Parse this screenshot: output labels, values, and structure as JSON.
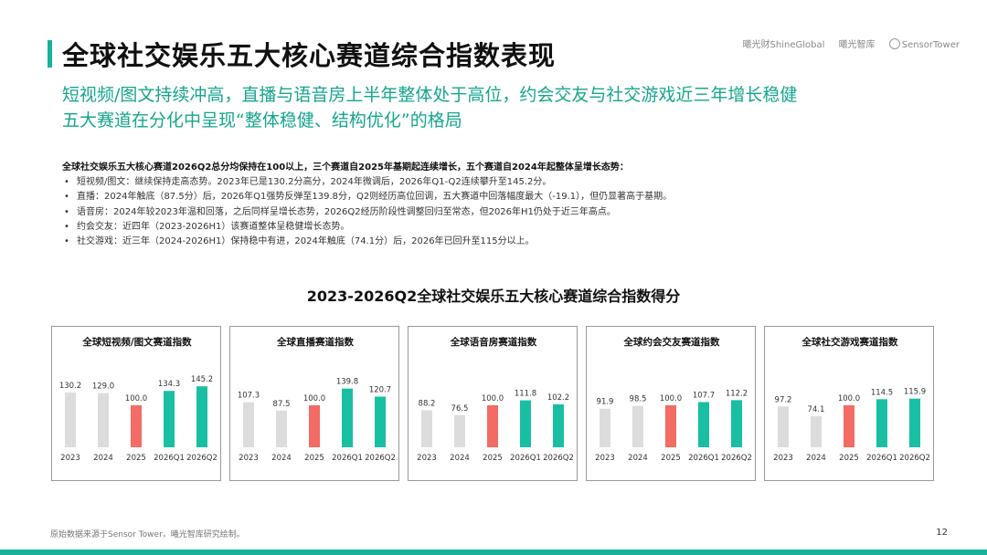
{
  "header": {
    "title": "全球社交娱乐五大核心赛道综合指数表现",
    "logos": [
      "曦光财ShineGlobal",
      "曦光智库",
      "SensorTower"
    ]
  },
  "subtitle": {
    "line1": "短视频/图文持续冲高，直播与语音房上半年整体处于高位，约会交友与社交游戏近三年增长稳健",
    "line2": "五大赛道在分化中呈现“整体稳健、结构优化”的格局"
  },
  "summary": {
    "lead": "全球社交娱乐五大核心赛道2026Q2总分均保持在100以上，三个赛道自2025年基期起连续增长，五个赛道自2024年起整体呈增长态势：",
    "bullets": [
      "短视频/图文：继续保持走高态势。2023年已是130.2分高分，2024年微调后，2026年Q1-Q2连续攀升至145.2分。",
      "直播：2024年触底（87.5分）后，2026年Q1强势反弹至139.8分，Q2则经历高位回调，五大赛道中回落幅度最大（-19.1），但仍显著高于基期。",
      "语音房：2024年较2023年温和回落，之后同样呈增长态势，2026Q2经历阶段性调整回归至常态，但2026年H1仍处于近三年高点。",
      "约会交友：近四年（2023-2026H1）该赛道整体呈稳健增长态势。",
      "社交游戏：近三年（2024-2026H1）保持稳中有进，2024年触底（74.1分）后，2026年已回升至115分以上。"
    ]
  },
  "charts_title": "2023-2026Q2全球社交娱乐五大核心赛道综合指数得分",
  "colors": {
    "accent": "#16b39b",
    "base_year": "#f26b64",
    "prior": "#dcdcdc",
    "bar_green": "#19bfa2"
  },
  "chart_data": [
    {
      "type": "bar",
      "title": "全球短视频/图文赛道指数",
      "categories": [
        "2023",
        "2024",
        "2025",
        "2026Q1",
        "2026Q2"
      ],
      "values": [
        130.2,
        129.0,
        100.0,
        134.3,
        145.2
      ],
      "value_labels": [
        "130.2",
        "129.0",
        "100.0",
        "134.3",
        "145.2"
      ]
    },
    {
      "type": "bar",
      "title": "全球直播赛道指数",
      "categories": [
        "2023",
        "2024",
        "2025",
        "2026Q1",
        "2026Q2"
      ],
      "values": [
        107.3,
        87.5,
        100.0,
        139.8,
        120.7
      ],
      "value_labels": [
        "107.3",
        "87.5",
        "100.0",
        "139.8",
        "120.7"
      ]
    },
    {
      "type": "bar",
      "title": "全球语音房赛道指数",
      "categories": [
        "2023",
        "2024",
        "2025",
        "2026Q1",
        "2026Q2"
      ],
      "values": [
        88.2,
        76.5,
        100.0,
        111.8,
        102.2
      ],
      "value_labels": [
        "88.2",
        "76.5",
        "100.0",
        "111.8",
        "102.2"
      ]
    },
    {
      "type": "bar",
      "title": "全球约会交友赛道指数",
      "categories": [
        "2023",
        "2024",
        "2025",
        "2026Q1",
        "2026Q2"
      ],
      "values": [
        91.9,
        98.5,
        100.0,
        107.7,
        112.2
      ],
      "value_labels": [
        "91.9",
        "98.5",
        "100.0",
        "107.7",
        "112.2"
      ]
    },
    {
      "type": "bar",
      "title": "全球社交游戏赛道指数",
      "categories": [
        "2023",
        "2024",
        "2025",
        "2026Q1",
        "2026Q2"
      ],
      "values": [
        97.2,
        74.1,
        100.0,
        114.5,
        115.9
      ],
      "value_labels": [
        "97.2",
        "74.1",
        "100.0",
        "114.5",
        "115.9"
      ]
    }
  ],
  "footer": {
    "source": "原始数据来源于Sensor Tower，曦光智库研究绘制。",
    "page": "12"
  }
}
